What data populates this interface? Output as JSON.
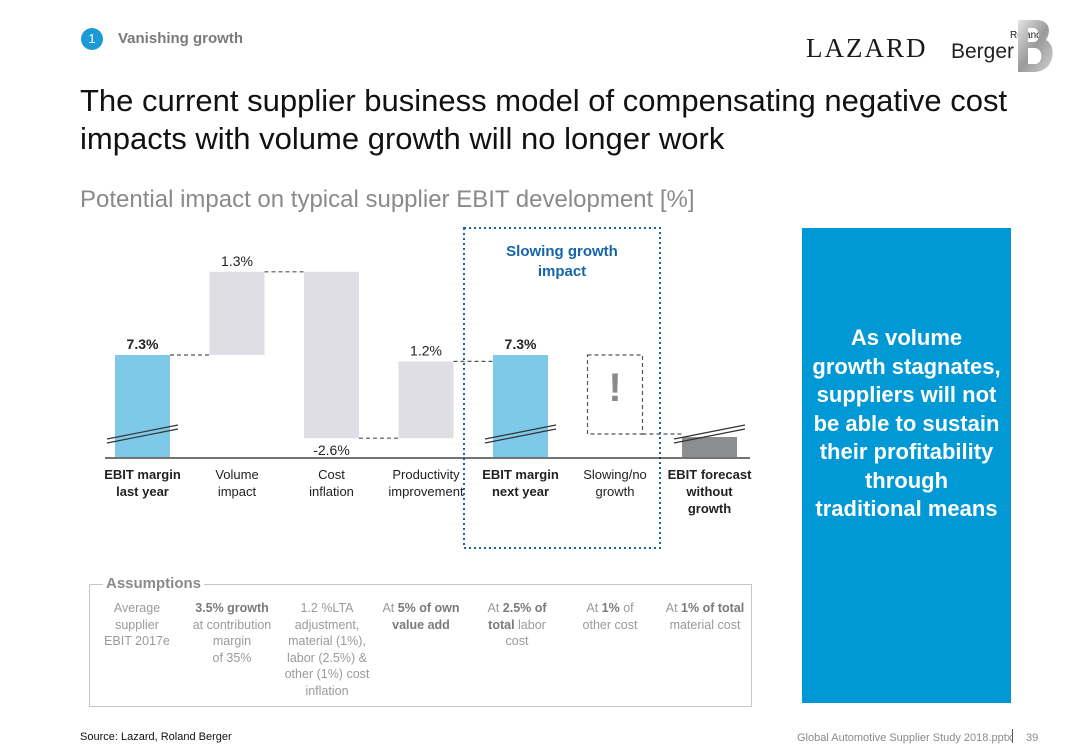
{
  "header": {
    "section_number": "1",
    "section_title": "Vanishing growth",
    "logo_lazard": "LAZARD",
    "logo_roland": "Roland",
    "logo_berger": "Berger"
  },
  "headline": "The current supplier business model of compensating negative cost impacts with volume growth will no longer work",
  "chart_subtitle": "Potential impact on typical supplier EBIT development [%]",
  "chart_data": {
    "type": "bar",
    "subtype": "waterfall",
    "title": "Potential impact on typical supplier EBIT development [%]",
    "unit": "%",
    "y_axis_broken": true,
    "categories": [
      "EBIT margin last year",
      "Volume impact",
      "Cost inflation",
      "Productivity improvement",
      "EBIT margin next year",
      "Slowing/no growth",
      "EBIT forecast without growth"
    ],
    "values": [
      7.3,
      1.3,
      -2.6,
      1.2,
      7.3,
      null,
      null
    ],
    "value_labels": [
      "7.3%",
      "1.3%",
      "-2.6%",
      "1.2%",
      "7.3%",
      "!",
      ""
    ],
    "bar_kinds": [
      "total",
      "delta",
      "delta",
      "delta",
      "total",
      "unknown-delta",
      "total"
    ],
    "highlight_group": {
      "label": "Slowing growth impact",
      "categories": [
        "EBIT margin next year",
        "Slowing/no growth"
      ]
    },
    "colors": {
      "total": "#7ec8e8",
      "delta": "#dedee4",
      "forecast": "#8c8d91",
      "highlight": "#1565a8"
    }
  },
  "side_panel": {
    "text": "As volume growth stagnates, suppliers will not be able to sustain their profitability through traditional means",
    "color": "#0099d6"
  },
  "assumptions": {
    "title": "Assumptions",
    "columns": [
      {
        "lines": [
          {
            "t": "Average"
          },
          {
            "t": "supplier"
          },
          {
            "t": "EBIT 2017e"
          }
        ]
      },
      {
        "lines": [
          {
            "t": "3.5% growth",
            "b": true
          },
          {
            "t": "at contribution"
          },
          {
            "t": "margin"
          },
          {
            "t": "of 35%"
          }
        ]
      },
      {
        "lines": [
          {
            "t": "1.2 %LTA"
          },
          {
            "t": "adjustment,"
          },
          {
            "t": "material (1%),"
          },
          {
            "t": "labor (2.5%) &"
          },
          {
            "t": "other (1%) cost"
          },
          {
            "t": "inflation"
          }
        ]
      },
      {
        "lines": [
          {
            "t": "At ",
            "r": [
              {
                "t": "At "
              },
              {
                "t": "5% of own",
                "b": true
              }
            ]
          },
          {
            "t": "value add",
            "b": true
          }
        ]
      },
      {
        "lines": [
          {
            "r": [
              {
                "t": "At "
              },
              {
                "t": "2.5% of",
                "b": true
              }
            ]
          },
          {
            "r": [
              {
                "t": "total",
                "b": true
              },
              {
                "t": " labor"
              }
            ]
          },
          {
            "t": "cost"
          }
        ]
      },
      {
        "lines": [
          {
            "r": [
              {
                "t": "At "
              },
              {
                "t": "1%",
                "b": true
              },
              {
                "t": " of"
              }
            ]
          },
          {
            "t": "other cost"
          }
        ]
      },
      {
        "lines": [
          {
            "r": [
              {
                "t": "At "
              },
              {
                "t": "1% of total",
                "b": true
              }
            ]
          },
          {
            "t": "material cost"
          }
        ]
      }
    ]
  },
  "footer": {
    "source": "Source: Lazard, Roland Berger",
    "file": "Global Automotive Supplier Study 2018.pptx",
    "page": "39"
  }
}
